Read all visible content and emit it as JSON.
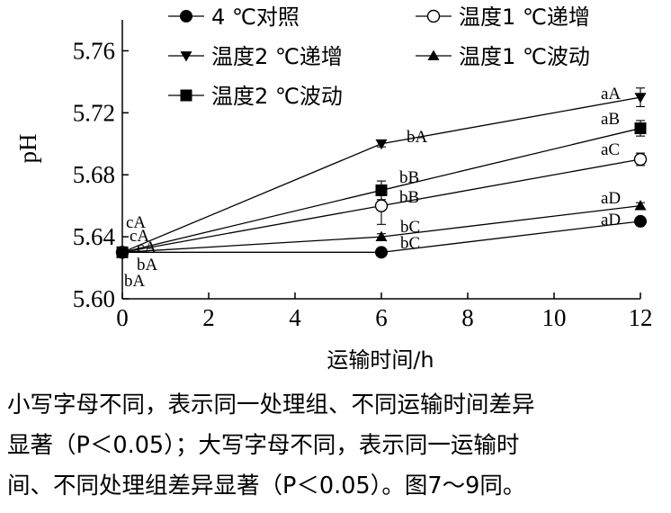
{
  "chart_data": {
    "type": "line",
    "xlabel": "运输时间/h",
    "ylabel": "pH",
    "xlim": [
      0,
      12
    ],
    "ylim": [
      5.6,
      5.78
    ],
    "x_ticks": [
      0,
      2,
      4,
      6,
      8,
      10,
      12
    ],
    "y_ticks": [
      5.6,
      5.64,
      5.68,
      5.72,
      5.76
    ],
    "legend_position": "top",
    "x": [
      0,
      6,
      12
    ],
    "series": [
      {
        "name": "4 ℃对照",
        "marker": "circle-filled",
        "values": [
          5.63,
          5.63,
          5.65
        ],
        "err": [
          0.002,
          0.002,
          0.002
        ],
        "labels": [
          "bA",
          "bC",
          "aD"
        ]
      },
      {
        "name": "温度1 ℃递增",
        "marker": "circle-open",
        "values": [
          5.63,
          5.66,
          5.69
        ],
        "err": [
          0.003,
          0.012,
          0.004
        ],
        "labels": [
          "cA",
          "bB",
          "aC"
        ]
      },
      {
        "name": "温度2 ℃递增",
        "marker": "triangle-down",
        "values": [
          5.63,
          5.7,
          5.73
        ],
        "err": [
          0.002,
          0.002,
          0.006
        ],
        "labels": [
          "cA",
          "bA",
          "aA"
        ]
      },
      {
        "name": "温度1 ℃波动",
        "marker": "triangle-up",
        "values": [
          5.63,
          5.64,
          5.66
        ],
        "err": [
          0.002,
          0.002,
          0.002
        ],
        "labels": [
          "bA",
          "bC",
          "aD"
        ]
      },
      {
        "name": "温度2 ℃波动",
        "marker": "square",
        "values": [
          5.63,
          5.67,
          5.71
        ],
        "err": [
          0.002,
          0.006,
          0.005
        ],
        "labels": [
          "cA",
          "bB",
          "aB"
        ]
      }
    ]
  },
  "caption": {
    "line1": "小写字母不同，表示同一处理组、不同运输时间差异",
    "line2": "显著（P＜0.05）；大写字母不同，表示同一运输时",
    "line3": "间、不同处理组差异显著（P＜0.05）。图7～9同。"
  }
}
